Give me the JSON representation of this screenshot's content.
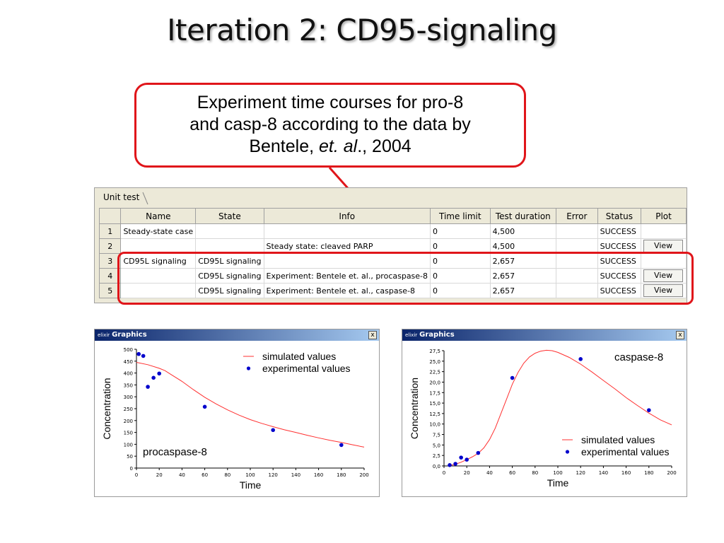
{
  "slide": {
    "title": "Iteration 2: CD95-signaling",
    "callout": {
      "line1": "Experiment time courses for pro-8",
      "line2": "and casp-8 according to the data by",
      "line3_prefix": "Bentele, ",
      "line3_italic": "et. al",
      "line3_suffix": "., 2004"
    }
  },
  "unit_test": {
    "tab_label": "Unit test",
    "columns": [
      "Name",
      "State",
      "Info",
      "Time limit",
      "Test duration",
      "Error",
      "Status",
      "Plot"
    ],
    "rows": [
      {
        "num": "1",
        "name": "Steady-state case",
        "state": "",
        "info": "",
        "time_limit": "0",
        "duration": "4,500",
        "error": "",
        "status": "SUCCESS",
        "plot": ""
      },
      {
        "num": "2",
        "name": "",
        "state": "",
        "info": "Steady state: cleaved PARP",
        "time_limit": "0",
        "duration": "4,500",
        "error": "",
        "status": "SUCCESS",
        "plot": "View"
      },
      {
        "num": "3",
        "name": "CD95L signaling",
        "state": "CD95L  signaling",
        "info": "",
        "time_limit": "0",
        "duration": "2,657",
        "error": "",
        "status": "SUCCESS",
        "plot": ""
      },
      {
        "num": "4",
        "name": "",
        "state": "CD95L  signaling",
        "info": "Experiment: Bentele et. al., procaspase-8",
        "time_limit": "0",
        "duration": "2,657",
        "error": "",
        "status": "SUCCESS",
        "plot": "View"
      },
      {
        "num": "5",
        "name": "",
        "state": "CD95L  signaling",
        "info": "Experiment: Bentele et. al., caspase-8",
        "time_limit": "0",
        "duration": "2,657",
        "error": "",
        "status": "SUCCESS",
        "plot": "View"
      }
    ]
  },
  "graphics_windows": [
    {
      "title": "Graphics",
      "icon_text": "elixir",
      "close": "x"
    },
    {
      "title": "Graphics",
      "icon_text": "elixir",
      "close": "x"
    }
  ],
  "colors": {
    "accent_red": "#e0151a",
    "sim_line": "#ff3030",
    "exp_points": "#0000cc"
  },
  "chart_data": [
    {
      "type": "scatter",
      "title": "",
      "annotation": "procaspase-8",
      "xlabel": "Time",
      "ylabel": "Concentration",
      "xlim": [
        0,
        200
      ],
      "ylim": [
        0,
        500
      ],
      "xticks": [
        0,
        20,
        40,
        60,
        80,
        100,
        120,
        140,
        160,
        180,
        200
      ],
      "yticks": [
        0,
        50,
        100,
        150,
        200,
        250,
        300,
        350,
        400,
        450,
        500
      ],
      "ytick_labels": [
        "0",
        "50",
        "100",
        "150",
        "200",
        "250",
        "300",
        "350",
        "400",
        "450",
        "500"
      ],
      "legend_position": "top-right",
      "series": [
        {
          "name": "simulated values",
          "kind": "line",
          "x": [
            0,
            10,
            20,
            25,
            30,
            40,
            50,
            60,
            70,
            80,
            90,
            100,
            110,
            120,
            130,
            140,
            150,
            160,
            170,
            180,
            190,
            200
          ],
          "y": [
            445,
            435,
            420,
            410,
            395,
            365,
            330,
            298,
            270,
            245,
            223,
            204,
            188,
            174,
            161,
            150,
            138,
            127,
            117,
            108,
            98,
            88
          ]
        },
        {
          "name": "experimental values",
          "kind": "points",
          "x": [
            2,
            6,
            10,
            15,
            20,
            60,
            120,
            180
          ],
          "y": [
            480,
            472,
            342,
            380,
            398,
            258,
            160,
            97
          ]
        }
      ]
    },
    {
      "type": "scatter",
      "title": "",
      "annotation": "caspase-8",
      "xlabel": "Time",
      "ylabel": "Concentration",
      "xlim": [
        0,
        200
      ],
      "ylim": [
        0,
        27.5
      ],
      "xticks": [
        0,
        20,
        40,
        60,
        80,
        100,
        120,
        140,
        160,
        180,
        200
      ],
      "yticks": [
        0,
        2.5,
        5,
        7.5,
        10,
        12.5,
        15,
        17.5,
        20,
        22.5,
        25,
        27.5
      ],
      "ytick_labels": [
        "0,0",
        "2,5",
        "5,0",
        "7,5",
        "10,0",
        "12,5",
        "15,0",
        "17,5",
        "20,0",
        "22,5",
        "25,0",
        "27,5"
      ],
      "legend_position": "bottom-right",
      "series": [
        {
          "name": "simulated values",
          "kind": "line",
          "x": [
            5,
            10,
            15,
            20,
            25,
            30,
            35,
            40,
            45,
            50,
            55,
            60,
            65,
            70,
            75,
            80,
            85,
            90,
            95,
            100,
            110,
            120,
            130,
            140,
            150,
            160,
            170,
            180,
            190,
            200
          ],
          "y": [
            0.1,
            0.4,
            0.9,
            1.5,
            2.2,
            3.0,
            4.3,
            6.3,
            9.0,
            12.5,
            16.0,
            19.5,
            22.3,
            24.5,
            26.0,
            26.9,
            27.4,
            27.6,
            27.5,
            27.1,
            25.9,
            24.3,
            22.4,
            20.4,
            18.4,
            16.3,
            14.4,
            12.6,
            11.0,
            9.8
          ]
        },
        {
          "name": "experimental values",
          "kind": "points",
          "x": [
            5,
            10,
            15,
            20,
            30,
            60,
            120,
            180
          ],
          "y": [
            0.2,
            0.5,
            2.0,
            1.5,
            3.1,
            21.0,
            25.5,
            13.3
          ]
        }
      ]
    }
  ]
}
